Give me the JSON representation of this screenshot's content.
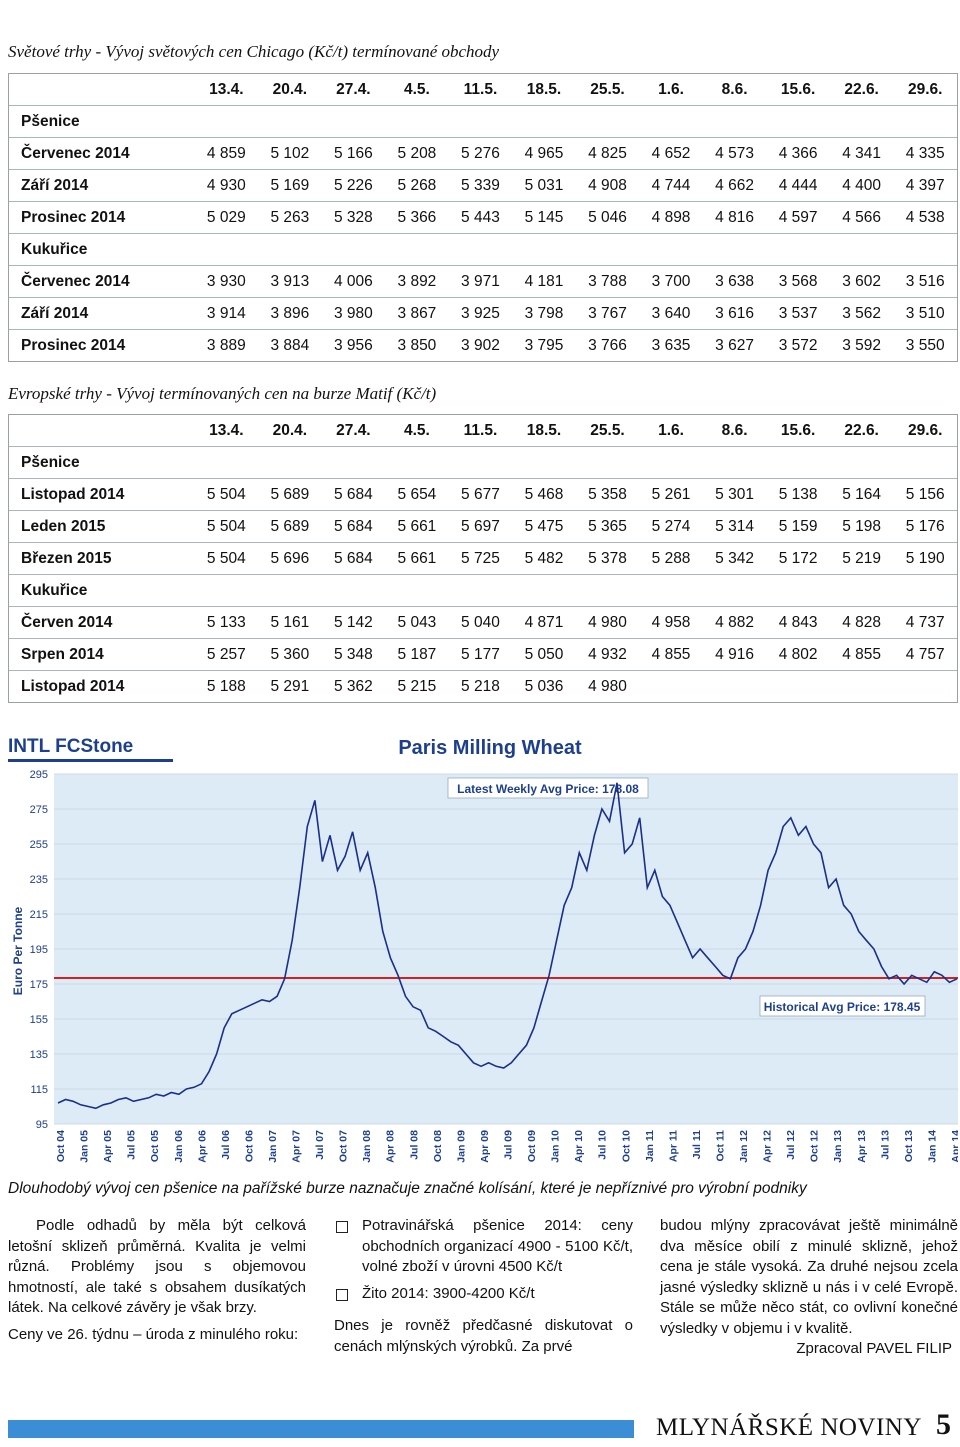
{
  "section1": {
    "title": "Světové trhy  - Vývoj světových cen Chicago (Kč/t) termínované obchody",
    "dates": [
      "13.4.",
      "20.4.",
      "27.4.",
      "4.5.",
      "11.5.",
      "18.5.",
      "25.5.",
      "1.6.",
      "8.6.",
      "15.6.",
      "22.6.",
      "29.6."
    ],
    "groups": [
      {
        "name": "Pšenice",
        "rows": [
          {
            "label": "Červenec 2014",
            "values": [
              "4 859",
              "5 102",
              "5 166",
              "5 208",
              "5 276",
              "4 965",
              "4 825",
              "4 652",
              "4 573",
              "4 366",
              "4 341",
              "4 335"
            ]
          },
          {
            "label": "Září  2014",
            "values": [
              "4 930",
              "5 169",
              "5 226",
              "5 268",
              "5 339",
              "5 031",
              "4 908",
              "4 744",
              "4 662",
              "4 444",
              "4 400",
              "4 397"
            ]
          },
          {
            "label": "Prosinec 2014",
            "values": [
              "5 029",
              "5 263",
              "5 328",
              "5 366",
              "5 443",
              "5 145",
              "5 046",
              "4 898",
              "4 816",
              "4 597",
              "4 566",
              "4 538"
            ]
          }
        ]
      },
      {
        "name": "Kukuřice",
        "rows": [
          {
            "label": "Červenec 2014",
            "values": [
              "3 930",
              "3 913",
              "4 006",
              "3 892",
              "3 971",
              "4 181",
              "3 788",
              "3 700",
              "3 638",
              "3 568",
              "3 602",
              "3 516"
            ]
          },
          {
            "label": "Září  2014",
            "values": [
              "3 914",
              "3 896",
              "3 980",
              "3 867",
              "3 925",
              "3 798",
              "3 767",
              "3 640",
              "3 616",
              "3 537",
              "3 562",
              "3 510"
            ]
          },
          {
            "label": "Prosinec 2014",
            "values": [
              "3 889",
              "3 884",
              "3 956",
              "3 850",
              "3 902",
              "3 795",
              "3 766",
              "3 635",
              "3 627",
              "3 572",
              "3 592",
              "3 550"
            ]
          }
        ]
      }
    ]
  },
  "section2": {
    "title": "Evropské trhy - Vývoj termínovaných cen na burze Matif (Kč/t)",
    "dates": [
      "13.4.",
      "20.4.",
      "27.4.",
      "4.5.",
      "11.5.",
      "18.5.",
      "25.5.",
      "1.6.",
      "8.6.",
      "15.6.",
      "22.6.",
      "29.6."
    ],
    "groups": [
      {
        "name": "Pšenice",
        "rows": [
          {
            "label": "Listopad 2014",
            "values": [
              "5 504",
              "5 689",
              "5 684",
              "5 654",
              "5 677",
              "5 468",
              "5 358",
              "5 261",
              "5 301",
              "5 138",
              "5 164",
              "5 156"
            ]
          },
          {
            "label": "Leden 2015",
            "values": [
              "5 504",
              "5 689",
              "5 684",
              "5 661",
              "5 697",
              "5 475",
              "5 365",
              "5 274",
              "5 314",
              "5 159",
              "5 198",
              "5 176"
            ]
          },
          {
            "label": "Březen 2015",
            "values": [
              "5 504",
              "5 696",
              "5 684",
              "5 661",
              "5 725",
              "5 482",
              "5 378",
              "5 288",
              "5 342",
              "5 172",
              "5 219",
              "5 190"
            ]
          }
        ]
      },
      {
        "name": "Kukuřice",
        "rows": [
          {
            "label": "Červen 2014",
            "values": [
              "5 133",
              "5 161",
              "5 142",
              "5 043",
              "5 040",
              " 4 871",
              "4 980",
              "4 958",
              "4 882",
              "4 843",
              "4 828",
              "4 737"
            ]
          },
          {
            "label": "Srpen 2014",
            "values": [
              "5 257",
              "5 360",
              "5 348",
              "5 187",
              "5 177",
              "5 050",
              "4 932",
              "4 855",
              "4 916",
              "4 802",
              "4 855",
              "4 757"
            ]
          },
          {
            "label": "Listopad 2014",
            "values": [
              "5 188",
              "5 291",
              "5 362",
              "5 215",
              "5 218",
              "5 036",
              "4 980",
              "",
              "",
              "",
              "",
              ""
            ]
          }
        ]
      }
    ]
  },
  "chart_data": {
    "type": "line",
    "logo": "INTL FCStone",
    "title": "Paris Milling Wheat",
    "subtitle": "Latest Weekly Avg Price: 178.08",
    "ylabel": "Euro Per Tonne",
    "ylim": [
      95,
      295
    ],
    "yticks": [
      95,
      115,
      135,
      155,
      175,
      195,
      215,
      235,
      255,
      275,
      295
    ],
    "xticks": [
      "Oct 04",
      "Jan 05",
      "Apr 05",
      "Jul 05",
      "Oct 05",
      "Jan 06",
      "Apr 06",
      "Jul 06",
      "Oct 06",
      "Jan 07",
      "Apr 07",
      "Jul 07",
      "Oct 07",
      "Jan 08",
      "Apr 08",
      "Jul 08",
      "Oct 08",
      "Jan 09",
      "Apr 09",
      "Jul 09",
      "Oct 09",
      "Jan 10",
      "Apr 10",
      "Jul 10",
      "Oct 10",
      "Jan 11",
      "Apr 11",
      "Jul 11",
      "Oct 11",
      "Jan 12",
      "Apr 12",
      "Jul 12",
      "Oct 12",
      "Jan 13",
      "Apr 13",
      "Jul 13",
      "Oct 13",
      "Jan 14",
      "Apr 14"
    ],
    "reference_line": {
      "label": "Historical Avg Price: 178.45",
      "value": 178.45,
      "color": "#d62020"
    },
    "series": [
      {
        "color": "#1a2f8a",
        "values": [
          107,
          109,
          108,
          106,
          105,
          104,
          106,
          107,
          109,
          110,
          108,
          109,
          110,
          112,
          111,
          113,
          112,
          115,
          116,
          118,
          125,
          135,
          150,
          158,
          160,
          162,
          164,
          166,
          165,
          168,
          178,
          200,
          230,
          265,
          280,
          245,
          260,
          240,
          248,
          262,
          240,
          250,
          230,
          205,
          190,
          180,
          168,
          162,
          160,
          150,
          148,
          145,
          142,
          140,
          135,
          130,
          128,
          130,
          128,
          127,
          130,
          135,
          140,
          150,
          165,
          180,
          200,
          220,
          230,
          250,
          240,
          260,
          275,
          268,
          290,
          250,
          255,
          270,
          230,
          240,
          225,
          220,
          210,
          200,
          190,
          195,
          190,
          185,
          180,
          178,
          190,
          195,
          205,
          220,
          240,
          250,
          265,
          270,
          260,
          265,
          255,
          250,
          230,
          235,
          220,
          215,
          205,
          200,
          195,
          185,
          178,
          180,
          175,
          180,
          178,
          176,
          182,
          180,
          176,
          178
        ]
      }
    ]
  },
  "caption": "Dlouhodobý vývoj cen pšenice na pařížské burze naznačuje značné kolísání, které je nepříznivé pro výrobní podniky",
  "text": {
    "col1_p1": "Podle odhadů by měla být celková letošní sklizeň průměrná. Kvalita je velmi různá. Problémy jsou s objemovou hmotností, ale také s obsahem dusíkatých látek. Na celkové závěry je však brzy.",
    "col1_p2": "Ceny ve 26. týdnu – úroda z minulého roku:",
    "bullet1": "Potravinářská pšenice 2014: ceny obchodních organizací 4900 - 5100 Kč/t, volné zboží v úrovni 4500 Kč/t",
    "bullet2": "Žito 2014: 3900-4200 Kč/t",
    "col2_p": "Dnes je rovněž předčasné diskutovat o cenách mlýnských výrobků. Za prvé",
    "col3_p": "budou mlýny zpracovávat ještě minimálně dva měsíce obilí z minulé sklizně, jehož cena je stále vysoká. Za druhé nejsou zcela jasné výsledky sklizně u nás i v celé Evropě. Stále se může něco stát, co ovlivní konečné výsledky v objemu i v kvalitě.",
    "author": "Zpracoval PAVEL FILIP"
  },
  "footer": {
    "publication": "MLYNÁŘSKÉ NOVINY",
    "page": "5",
    "bar_color": "#3b8ed6"
  }
}
